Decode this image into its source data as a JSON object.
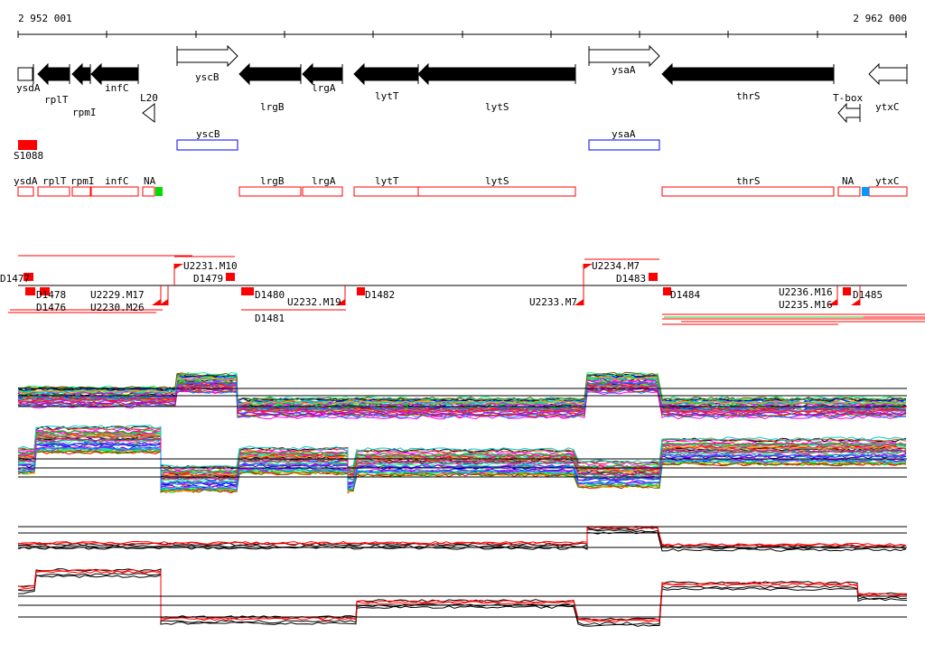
{
  "ruler": {
    "start_label": "2 952 001",
    "end_label": "2 962 000"
  },
  "genes": [
    {
      "name": "ysdA",
      "strand": "+",
      "style": "open-box"
    },
    {
      "name": "rplT",
      "strand": "-",
      "style": "filled"
    },
    {
      "name": "rpmI",
      "strand": "-",
      "style": "filled"
    },
    {
      "name": "infC",
      "strand": "-",
      "style": "filled"
    },
    {
      "name": "yscB",
      "strand": "+",
      "style": "open"
    },
    {
      "name": "lrgB",
      "strand": "-",
      "style": "filled"
    },
    {
      "name": "lrgA",
      "strand": "-",
      "style": "filled"
    },
    {
      "name": "lytT",
      "strand": "-",
      "style": "filled"
    },
    {
      "name": "lytS",
      "strand": "-",
      "style": "filled"
    },
    {
      "name": "ysaA",
      "strand": "+",
      "style": "open"
    },
    {
      "name": "thrS",
      "strand": "-",
      "style": "filled"
    },
    {
      "name": "ytxC",
      "strand": "-",
      "style": "open"
    }
  ],
  "small_features": [
    {
      "name": "L20"
    },
    {
      "name": "T-box"
    }
  ],
  "sigma_feature": {
    "name": "S1088",
    "color": "#ff0000"
  },
  "blue_boxes": [
    {
      "name": "yscB"
    },
    {
      "name": "ysaA"
    }
  ],
  "operon_boxes": [
    "ysdA",
    "rplT",
    "rpmI",
    "infC",
    "NA",
    "lrgB",
    "lrgA",
    "lytT",
    "lytS",
    "thrS",
    "NA",
    "ytxC"
  ],
  "marker_colors": {
    "green": "#00dd00",
    "blue": "#0099ff",
    "red": "#ff0000",
    "box_blue": "#0000ff"
  },
  "segments": [
    "D1477",
    "D1478",
    "D1476",
    "U2229.M17",
    "U2230.M26",
    "U2231.M10",
    "D1479",
    "D1480",
    "D1481",
    "U2232.M19",
    "D1482",
    "U2233.M7",
    "U2234.M7",
    "D1483",
    "D1484",
    "U2235.M16",
    "U2236.M16",
    "D1485"
  ]
}
